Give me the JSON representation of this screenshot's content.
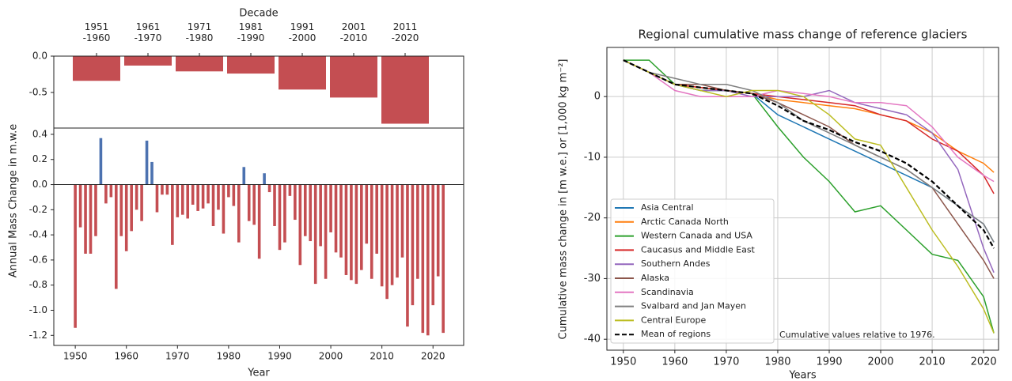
{
  "chart_data": [
    {
      "type": "bar",
      "xlabel": "Decade",
      "categories": [
        "1951\n-1960",
        "1961\n-1970",
        "1971\n-1980",
        "1981\n-1990",
        "1991\n-2000",
        "2001\n-2010",
        "2011\n-2020"
      ],
      "values": [
        -0.34,
        -0.13,
        -0.21,
        -0.24,
        -0.46,
        -0.57,
        -0.93
      ],
      "color": "#c44e52",
      "ylim": [
        -0.99,
        0
      ],
      "yticks": [
        {
          "value": 0,
          "label": "0.0"
        },
        -0.5
      ]
    },
    {
      "type": "bar",
      "xlabel": "Year",
      "ylabel": "Annual Mass Change in m.w.e",
      "x": [
        1950,
        1951,
        1952,
        1953,
        1954,
        1955,
        1956,
        1957,
        1958,
        1959,
        1960,
        1961,
        1962,
        1963,
        1964,
        1965,
        1966,
        1967,
        1968,
        1969,
        1970,
        1971,
        1972,
        1973,
        1974,
        1975,
        1976,
        1977,
        1978,
        1979,
        1980,
        1981,
        1982,
        1983,
        1984,
        1985,
        1986,
        1987,
        1988,
        1989,
        1990,
        1991,
        1992,
        1993,
        1994,
        1995,
        1996,
        1997,
        1998,
        1999,
        2000,
        2001,
        2002,
        2003,
        2004,
        2005,
        2006,
        2007,
        2008,
        2009,
        2010,
        2011,
        2012,
        2013,
        2014,
        2015,
        2016,
        2017,
        2018,
        2019,
        2020,
        2021,
        2022
      ],
      "values": [
        -1.14,
        -0.34,
        -0.55,
        -0.55,
        -0.41,
        0.37,
        -0.15,
        -0.1,
        -0.83,
        -0.41,
        -0.53,
        -0.37,
        -0.2,
        -0.29,
        0.35,
        0.18,
        -0.22,
        -0.08,
        -0.08,
        -0.48,
        -0.26,
        -0.24,
        -0.27,
        -0.16,
        -0.21,
        -0.19,
        -0.15,
        -0.33,
        -0.2,
        -0.39,
        -0.1,
        -0.17,
        -0.46,
        0.14,
        -0.29,
        -0.32,
        -0.59,
        0.09,
        -0.06,
        -0.33,
        -0.52,
        -0.46,
        -0.09,
        -0.28,
        -0.64,
        -0.41,
        -0.45,
        -0.79,
        -0.49,
        -0.75,
        -0.38,
        -0.54,
        -0.58,
        -0.72,
        -0.76,
        -0.79,
        -0.68,
        -0.47,
        -0.75,
        -0.55,
        -0.81,
        -0.91,
        -0.8,
        -0.74,
        -0.58,
        -1.13,
        -0.96,
        -0.75,
        -1.18,
        -1.2,
        -0.96,
        -0.73,
        -1.18
      ],
      "color_negative": "#c44e52",
      "color_positive": "#4c72b0",
      "xlim": [
        1945.8,
        2026
      ],
      "xticks": [
        1950,
        1960,
        1970,
        1980,
        1990,
        2000,
        2010,
        2020
      ],
      "ylim": [
        -1.28,
        0.45
      ],
      "yticks": [
        0.4,
        0.2,
        {
          "value": 0,
          "label": "0.0"
        },
        -0.2,
        -0.4,
        -0.6,
        -0.8,
        {
          "value": -1,
          "label": "-1.0"
        },
        -1.2
      ]
    },
    {
      "type": "line",
      "title": "Regional cumulative mass change of reference glaciers",
      "xlabel": "Years",
      "ylabel": "Cumulative mass change in [m w.e.] or [1,000 kg m⁻²]",
      "annotation": "Cumulative values relative to 1976.",
      "x": [
        1950,
        1955,
        1960,
        1965,
        1970,
        1975,
        1980,
        1985,
        1990,
        1995,
        2000,
        2005,
        2010,
        2015,
        2020,
        2022
      ],
      "series": [
        {
          "name": "Asia Central",
          "color": "#1f77b4",
          "values": [
            6,
            4,
            2,
            1,
            1,
            0.5,
            -3,
            -5,
            -7,
            -9,
            -11,
            -13,
            -15,
            -18,
            -21,
            -24
          ]
        },
        {
          "name": "Arctic Canada North",
          "color": "#ff7f0e",
          "values": [
            6,
            4,
            2,
            1.5,
            1,
            0.5,
            -0.5,
            -1,
            -1.5,
            -2,
            -3,
            -4,
            -6,
            -9,
            -11,
            -12.5
          ]
        },
        {
          "name": "Western Canada and USA",
          "color": "#2ca02c",
          "values": [
            6,
            6,
            2,
            1,
            1,
            0.5,
            -5,
            -10,
            -14,
            -19,
            -18,
            -22,
            -26,
            -27,
            -33,
            -39
          ]
        },
        {
          "name": "Caucasus and Middle East",
          "color": "#d62728",
          "values": [
            6,
            4,
            2,
            1.5,
            1,
            0.5,
            0,
            -0.5,
            -1,
            -1.5,
            -3,
            -4,
            -7,
            -9,
            -13,
            -16
          ]
        },
        {
          "name": "Southern Andes",
          "color": "#9467bd",
          "values": [
            6,
            4,
            2,
            1,
            1,
            0,
            0,
            0,
            1,
            -1,
            -2,
            -3,
            -6,
            -12,
            -25,
            -29
          ]
        },
        {
          "name": "Alaska",
          "color": "#8c564b",
          "values": [
            6,
            4,
            2,
            2,
            1,
            0.5,
            -1,
            -3,
            -5,
            -8,
            -10,
            -12,
            -15,
            -21,
            -27,
            -30
          ]
        },
        {
          "name": "Scandinavia",
          "color": "#e377c2",
          "values": [
            6,
            4,
            1,
            0,
            0,
            0,
            1,
            0.5,
            0,
            -1,
            -1,
            -1.5,
            -5,
            -10,
            -13,
            -14
          ]
        },
        {
          "name": "Svalbard and Jan Mayen",
          "color": "#7f7f7f",
          "values": [
            6,
            4,
            3,
            2,
            2,
            1,
            -1,
            -4,
            -6,
            -8,
            -10,
            -12,
            -15,
            -18,
            -21,
            -24
          ]
        },
        {
          "name": "Central Europe",
          "color": "#bcbd22",
          "values": [
            6,
            4,
            2,
            1,
            0,
            1,
            1,
            0,
            -3,
            -7,
            -8,
            -15,
            -22,
            -28,
            -35,
            -39
          ]
        },
        {
          "name": "Mean of regions",
          "color": "#000000",
          "linestyle": "dashed",
          "values": [
            6,
            4,
            2,
            1.5,
            1,
            0.5,
            -1.5,
            -4,
            -5.5,
            -7.5,
            -9,
            -11,
            -14,
            -18,
            -22,
            -25
          ]
        }
      ],
      "xlim": [
        1946.8,
        2022.9
      ],
      "xticks": [
        1950,
        1960,
        1970,
        1980,
        1990,
        2000,
        2010,
        2020
      ],
      "ylim": [
        -41.8,
        8.1
      ],
      "yticks": [
        -40,
        -30,
        -20,
        -10,
        0
      ],
      "grid": true,
      "legend": "lower left"
    }
  ]
}
